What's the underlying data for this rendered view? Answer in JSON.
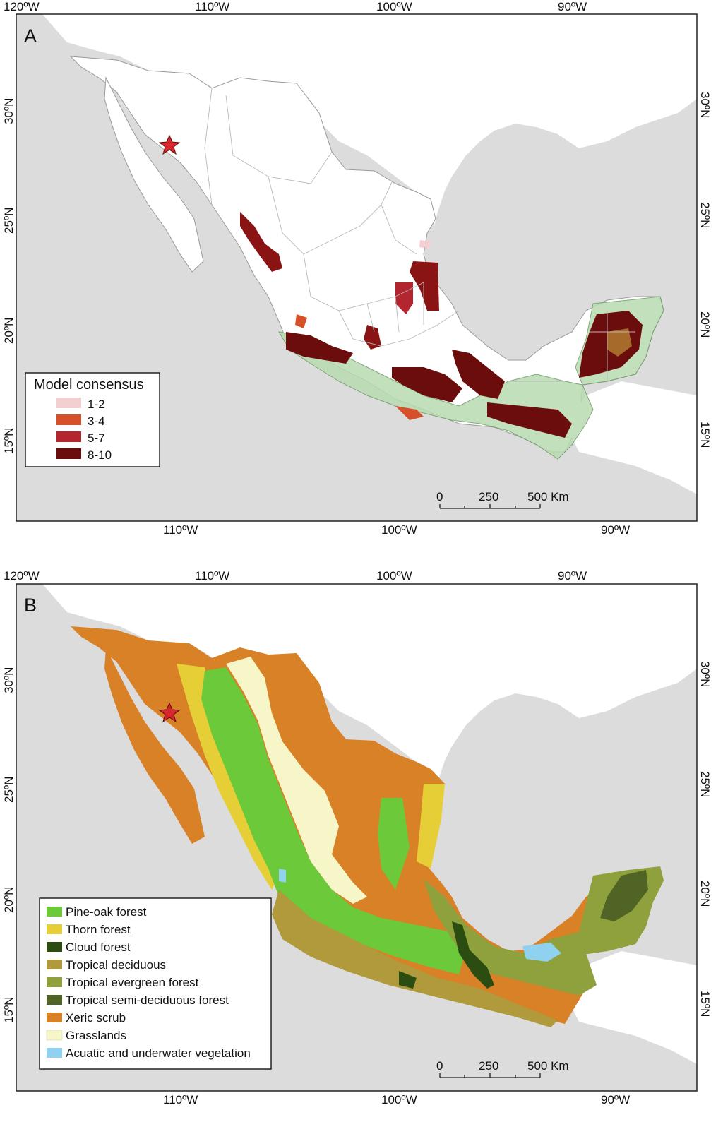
{
  "panels": {
    "a": {
      "label": "A",
      "legend": {
        "title": "Model consensus",
        "items": [
          {
            "label": "1-2",
            "color": "#f4cfd2"
          },
          {
            "label": "3-4",
            "color": "#d6502a"
          },
          {
            "label": "5-7",
            "color": "#b3252f"
          },
          {
            "label": "8-10",
            "color": "#6b0d0d"
          }
        ]
      }
    },
    "b": {
      "label": "B",
      "legend": {
        "items": [
          {
            "label": "Pine-oak forest",
            "color": "#6cc93a"
          },
          {
            "label": "Thorn forest",
            "color": "#e6cf36"
          },
          {
            "label": "Cloud forest",
            "color": "#2c4d12"
          },
          {
            "label": "Tropical deciduous",
            "color": "#b09a3b"
          },
          {
            "label": "Tropical evergreen forest",
            "color": "#8ea13c"
          },
          {
            "label": "Tropical semi-deciduous forest",
            "color": "#4f6425"
          },
          {
            "label": "Xeric scrub",
            "color": "#d98127"
          },
          {
            "label": "Grasslands",
            "color": "#f6f6c9"
          },
          {
            "label": "Acuatic and underwater vegetation",
            "color": "#8fd1ef"
          }
        ]
      }
    }
  },
  "axes": {
    "top_ticks": [
      "120ºW",
      "110ºW",
      "100ºW",
      "90ºW"
    ],
    "bottom_ticks": [
      "110ºW",
      "100ºW",
      "90ºW"
    ],
    "left_ticks": [
      "30ºN",
      "25ºN",
      "20ºN",
      "15ºN"
    ],
    "right_ticks": [
      "30ºN",
      "25ºN",
      "20ºN",
      "15ºN"
    ]
  },
  "scale_bar": {
    "labels": [
      "0",
      "250",
      "500 Km"
    ]
  },
  "colors": {
    "sea": "#dcdcdc",
    "land_other": "#ffffff",
    "biogeographic_zone": "#b7dbb0",
    "star": "#d7262b"
  }
}
